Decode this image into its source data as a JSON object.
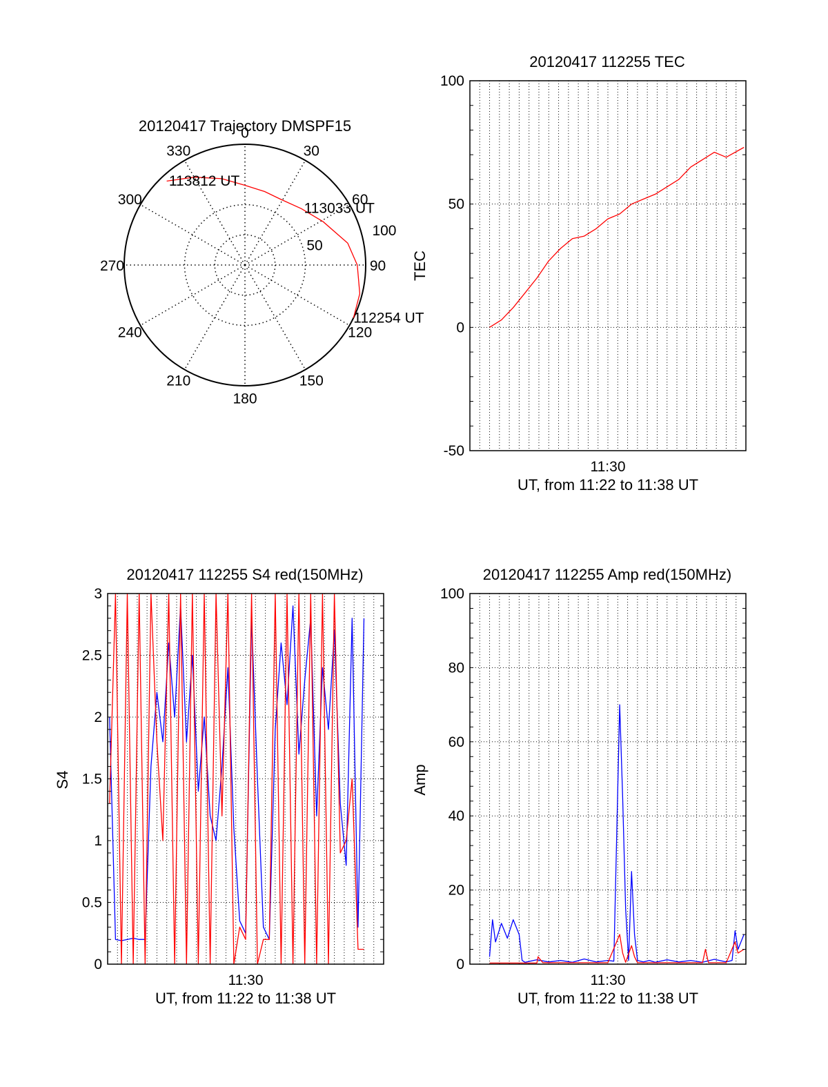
{
  "colors": {
    "red": "#ff0000",
    "blue": "#0000ff",
    "axis": "#000000",
    "grid": "#000000"
  },
  "chart_data": [
    {
      "id": "polar",
      "type": "polar-trajectory",
      "title": "20120417 Trajectory DMSPF15",
      "angle_labels": [
        "0",
        "30",
        "60",
        "90",
        "120",
        "150",
        "180",
        "210",
        "240",
        "270",
        "300",
        "330"
      ],
      "radial_labels": [
        "50",
        "100"
      ],
      "radial_max": 100,
      "grid": true,
      "trajectory": {
        "color": "red",
        "points": [
          {
            "az": 317,
            "zen": 95
          },
          {
            "az": 330,
            "zen": 84
          },
          {
            "az": 345,
            "zen": 74
          },
          {
            "az": 0,
            "zen": 66
          },
          {
            "az": 15,
            "zen": 63
          },
          {
            "az": 29,
            "zen": 62
          },
          {
            "az": 45,
            "zen": 66
          },
          {
            "az": 61,
            "zen": 74
          },
          {
            "az": 78,
            "zen": 87
          },
          {
            "az": 90,
            "zen": 93
          },
          {
            "az": 104,
            "zen": 98
          },
          {
            "az": 116,
            "zen": 100
          }
        ]
      },
      "annotations": [
        {
          "text": "113812 UT",
          "az": 318,
          "zen": 94
        },
        {
          "text": "113033 UT",
          "az": 46,
          "zen": 68
        },
        {
          "text": "112254 UT",
          "az": 116,
          "zen": 100
        }
      ]
    },
    {
      "id": "tec",
      "type": "line",
      "title": "20120417 112255 TEC",
      "xlabel": "UT, from 11:22 to 11:38 UT",
      "ylabel": "TEC",
      "ylim": [
        -50,
        100
      ],
      "yticks": [
        "-50",
        "0",
        "50",
        "100"
      ],
      "xtick": "11:30",
      "grid": true,
      "series": [
        {
          "color": "red",
          "x": [
            11.4,
            11.42,
            11.44,
            11.46,
            11.48,
            11.5,
            11.52,
            11.54,
            11.56,
            11.58,
            11.6,
            11.62,
            11.64,
            11.66,
            11.68,
            11.7,
            11.72,
            11.74,
            11.76,
            11.78,
            11.8,
            11.83
          ],
          "values": [
            0,
            3,
            8,
            14,
            20,
            27,
            32,
            36,
            37,
            40,
            44,
            46,
            50,
            52,
            54,
            57,
            60,
            65,
            68,
            71,
            69,
            73
          ]
        }
      ]
    },
    {
      "id": "s4",
      "type": "line",
      "title": "20120417 112255 S4 red(150MHz)",
      "xlabel": "UT, from 11:22 to 11:38 UT",
      "ylabel": "S4",
      "ylim": [
        0,
        3
      ],
      "yticks": [
        "0",
        "0.5",
        "1",
        "1.5",
        "2",
        "2.5",
        "3"
      ],
      "xtick": "11:30",
      "grid": true,
      "series": [
        {
          "color": "blue",
          "x": [
            11.37,
            11.38,
            11.39,
            11.4,
            11.41,
            11.42,
            11.43,
            11.44,
            11.45,
            11.46,
            11.47,
            11.48,
            11.49,
            11.5,
            11.51,
            11.52,
            11.53,
            11.54,
            11.55,
            11.56,
            11.57,
            11.58,
            11.59,
            11.6,
            11.61,
            11.62,
            11.63,
            11.64,
            11.65,
            11.66,
            11.67,
            11.68,
            11.69,
            11.7,
            11.71,
            11.72,
            11.73,
            11.74,
            11.75,
            11.76,
            11.77,
            11.78,
            11.79,
            11.8
          ],
          "values": [
            2.0,
            0.2,
            0.19,
            0.2,
            0.21,
            0.2,
            0.2,
            1.6,
            2.2,
            1.8,
            2.6,
            2.0,
            2.9,
            1.8,
            2.5,
            1.4,
            2.0,
            1.2,
            1.0,
            1.6,
            2.4,
            1.1,
            0.35,
            0.25,
            2.8,
            1.5,
            0.3,
            0.2,
            1.9,
            2.6,
            2.1,
            2.9,
            1.7,
            2.3,
            2.8,
            1.2,
            2.4,
            1.9,
            2.7,
            1.3,
            0.8,
            2.8,
            0.3,
            2.8
          ]
        },
        {
          "color": "red",
          "x": [
            11.37,
            11.38,
            11.39,
            11.4,
            11.41,
            11.42,
            11.43,
            11.44,
            11.45,
            11.46,
            11.47,
            11.48,
            11.49,
            11.5,
            11.51,
            11.52,
            11.53,
            11.54,
            11.55,
            11.56,
            11.57,
            11.58,
            11.59,
            11.6,
            11.61,
            11.62,
            11.63,
            11.64,
            11.65,
            11.66,
            11.67,
            11.68,
            11.69,
            11.7,
            11.71,
            11.72,
            11.73,
            11.74,
            11.75,
            11.76,
            11.77,
            11.78,
            11.79,
            11.8
          ],
          "values": [
            1.3,
            3.0,
            0.0,
            3.0,
            0.0,
            3.0,
            0.0,
            3.0,
            1.8,
            1.0,
            3.0,
            0.0,
            3.0,
            0.0,
            3.0,
            0.0,
            3.0,
            0.0,
            3.0,
            1.2,
            3.0,
            0.0,
            0.3,
            0.2,
            3.0,
            0.0,
            0.2,
            0.2,
            3.0,
            0.0,
            3.0,
            0.0,
            3.0,
            0.0,
            3.0,
            0.0,
            3.0,
            0.0,
            3.0,
            0.9,
            1.0,
            1.5,
            0.12,
            0.12
          ]
        }
      ]
    },
    {
      "id": "amp",
      "type": "line",
      "title": "20120417 112255 Amp red(150MHz)",
      "xlabel": "UT, from 11:22 to 11:38 UT",
      "ylabel": "Amp",
      "ylim": [
        0,
        100
      ],
      "yticks": [
        "0",
        "20",
        "40",
        "60",
        "80",
        "100"
      ],
      "xtick": "11:30",
      "grid": true,
      "series": [
        {
          "color": "blue",
          "x": [
            11.4,
            11.405,
            11.41,
            11.42,
            11.43,
            11.44,
            11.45,
            11.455,
            11.46,
            11.48,
            11.5,
            11.52,
            11.54,
            11.56,
            11.58,
            11.6,
            11.61,
            11.62,
            11.625,
            11.63,
            11.635,
            11.64,
            11.645,
            11.65,
            11.66,
            11.67,
            11.68,
            11.7,
            11.72,
            11.74,
            11.76,
            11.78,
            11.8,
            11.81,
            11.815,
            11.82,
            11.83
          ],
          "values": [
            2,
            12,
            6,
            11,
            7,
            12,
            8,
            1,
            0.5,
            1.2,
            0.6,
            1.0,
            0.5,
            1.4,
            0.6,
            1.0,
            0.8,
            70,
            45,
            15,
            1,
            25,
            8,
            1,
            0.6,
            1.0,
            0.5,
            1.2,
            0.6,
            1.0,
            0.5,
            1.3,
            0.6,
            1,
            9,
            4,
            8
          ]
        },
        {
          "color": "red",
          "x": [
            11.4,
            11.45,
            11.48,
            11.482,
            11.49,
            11.6,
            11.62,
            11.625,
            11.63,
            11.64,
            11.645,
            11.65,
            11.76,
            11.765,
            11.77,
            11.8,
            11.815,
            11.82,
            11.83
          ],
          "values": [
            0.3,
            0.3,
            0.3,
            2,
            0.4,
            0.4,
            8,
            3,
            0.5,
            5,
            2,
            0.4,
            0.4,
            4,
            0.4,
            0.4,
            6,
            3,
            4
          ]
        }
      ]
    }
  ]
}
